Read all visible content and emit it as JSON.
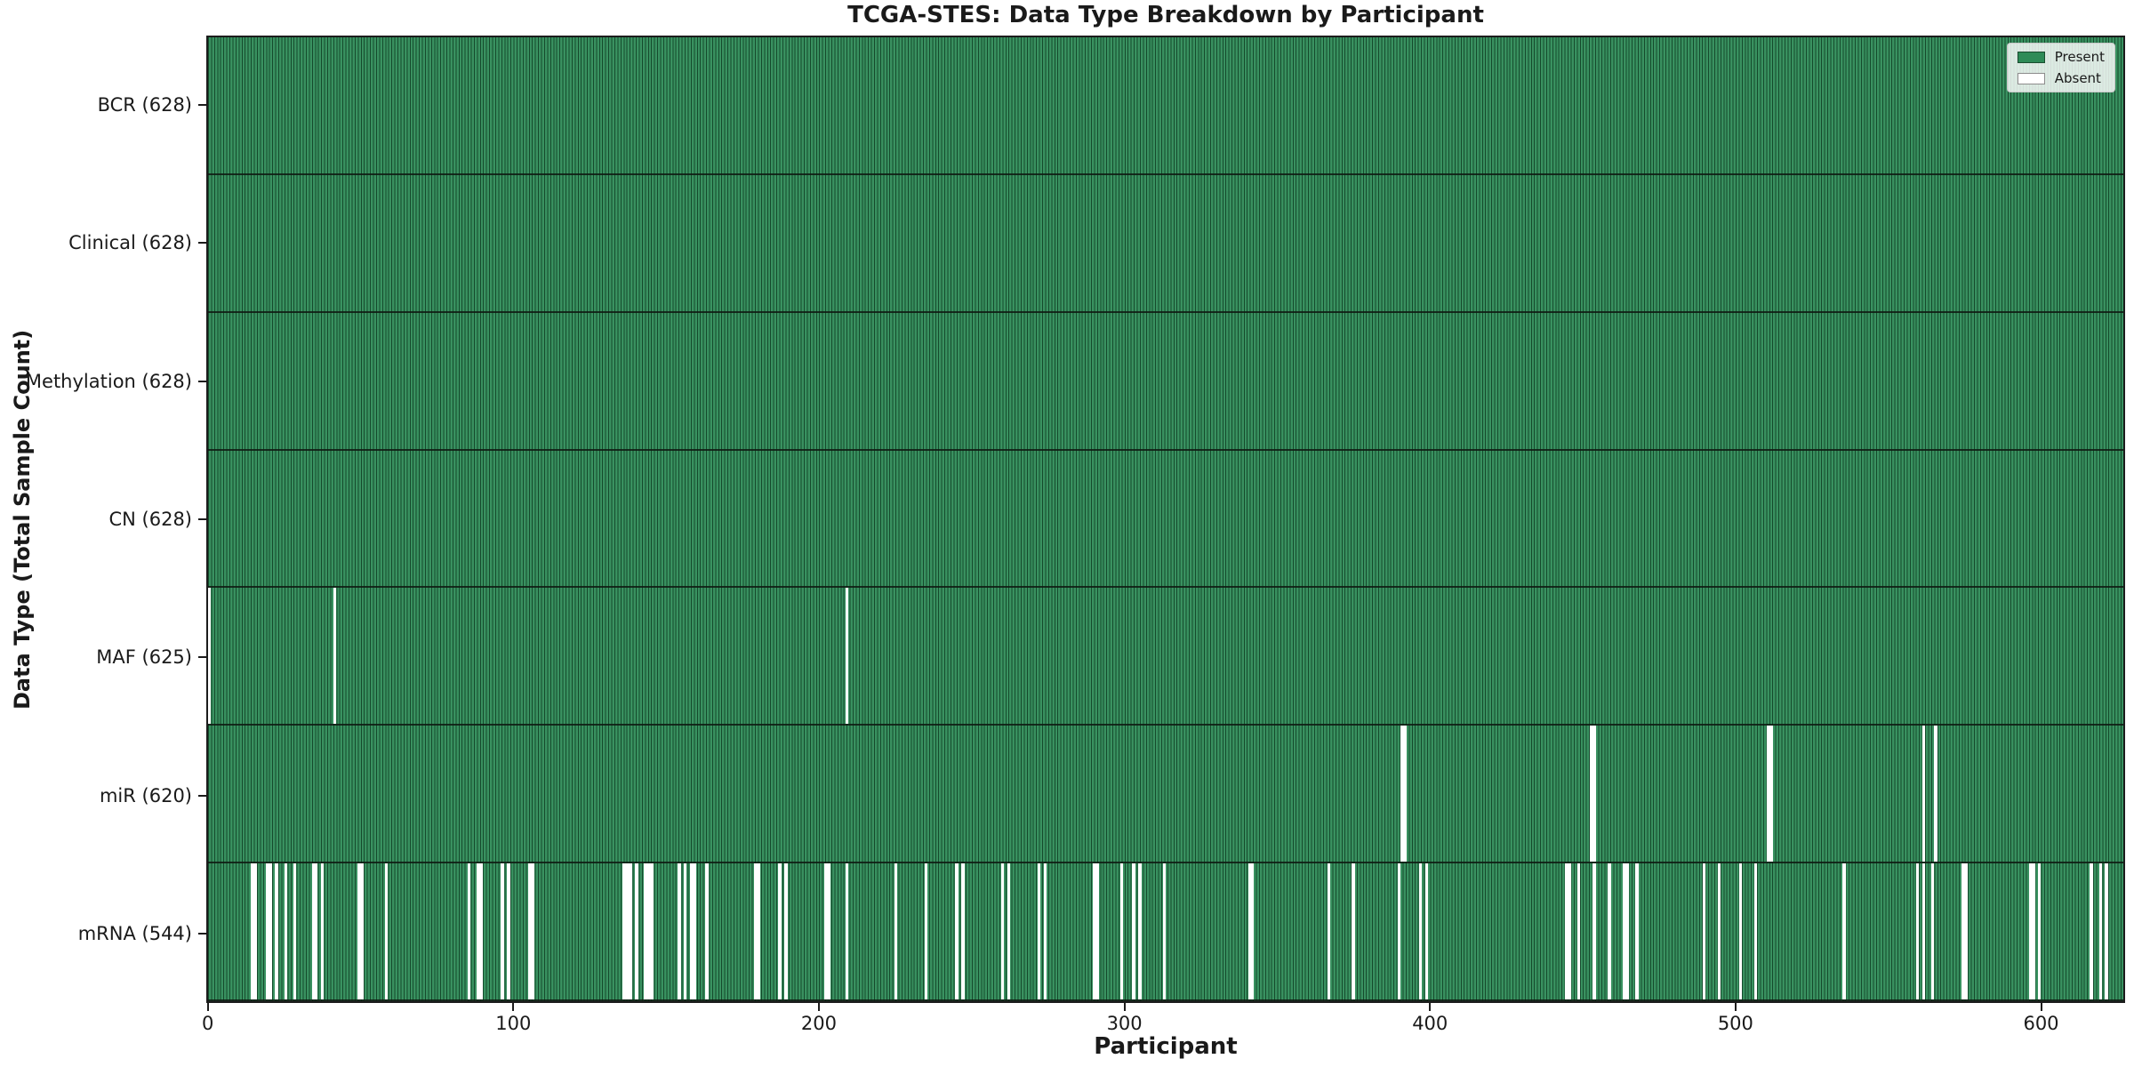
{
  "figure": {
    "title": "TCGA-STES: Data Type Breakdown by Participant",
    "xlabel": "Participant",
    "ylabel": "Data Type (Total Sample Count)"
  },
  "legend": {
    "entries": [
      {
        "label": "Present",
        "color": "#2e8b57"
      },
      {
        "label": "Absent",
        "color": "#ffffff"
      }
    ]
  },
  "chart_data": {
    "type": "heatmap",
    "title": "TCGA-STES: Data Type Breakdown by Participant",
    "xlabel": "Participant",
    "ylabel": "Data Type (Total Sample Count)",
    "x_ticks": [
      0,
      100,
      200,
      300,
      400,
      500,
      600
    ],
    "x_range": [
      0,
      628
    ],
    "n_participants": 628,
    "present_color": "#2e8b57",
    "absent_color": "#ffffff",
    "bar_edge_color": "#000000",
    "grid": false,
    "legend_position": "upper right",
    "rows": [
      {
        "label": "BCR (628)",
        "data_type": "BCR",
        "present_count": 628,
        "absent_participants": []
      },
      {
        "label": "Clinical (628)",
        "data_type": "Clinical",
        "present_count": 628,
        "absent_participants": []
      },
      {
        "label": "Methylation (628)",
        "data_type": "Methylation",
        "present_count": 628,
        "absent_participants": []
      },
      {
        "label": "CN (628)",
        "data_type": "CN",
        "present_count": 628,
        "absent_participants": []
      },
      {
        "label": "MAF (625)",
        "data_type": "MAF",
        "present_count": 625,
        "absent_participants": [
          0,
          41,
          209
        ]
      },
      {
        "label": "miR (620)",
        "data_type": "miR",
        "present_count": 620,
        "absent_participants": [
          391,
          392,
          453,
          454,
          511,
          512,
          562,
          566
        ]
      },
      {
        "label": "mRNA (544)",
        "data_type": "mRNA",
        "present_count": 544,
        "absent_participants": [
          14,
          15,
          19,
          20,
          22,
          25,
          28,
          34,
          35,
          37,
          49,
          50,
          58,
          85,
          88,
          89,
          96,
          98,
          105,
          106,
          136,
          137,
          138,
          140,
          143,
          144,
          145,
          154,
          156,
          158,
          159,
          163,
          179,
          180,
          187,
          189,
          202,
          203,
          209,
          225,
          235,
          245,
          247,
          260,
          262,
          272,
          274,
          290,
          291,
          299,
          303,
          305,
          313,
          341,
          342,
          367,
          375,
          390,
          397,
          399,
          445,
          446,
          449,
          454,
          459,
          464,
          465,
          468,
          490,
          495,
          502,
          507,
          536,
          560,
          562,
          565,
          575,
          576,
          597,
          598,
          600,
          617,
          620,
          622
        ]
      }
    ]
  }
}
